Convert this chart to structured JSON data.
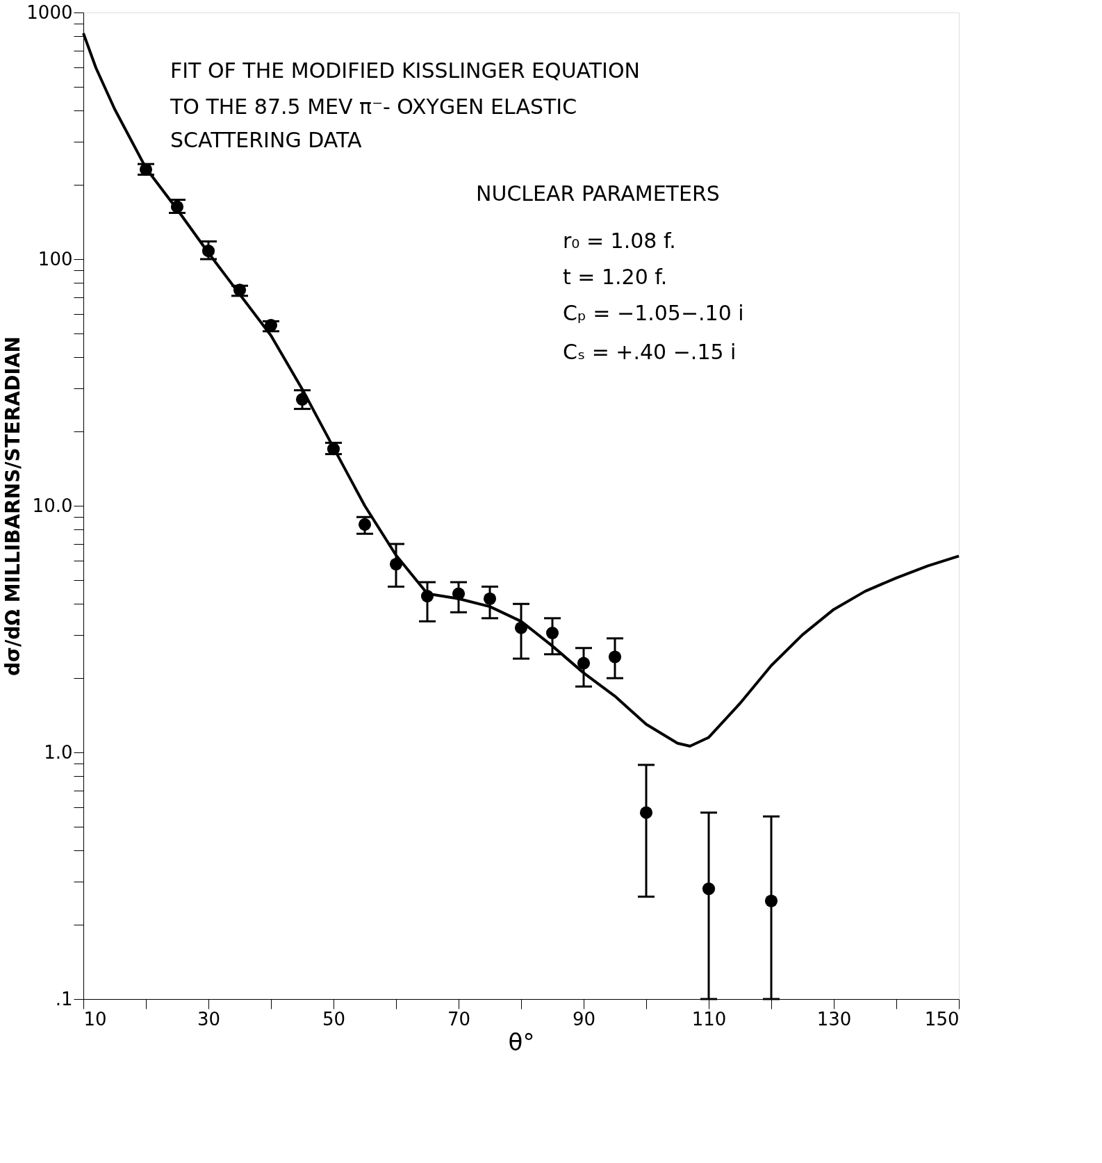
{
  "chart_data": {
    "type": "scatter",
    "xlabel": "θ°",
    "ylabel": "dσ/dΩ  MILLIBARNS/STERADIAN",
    "xlim": [
      10,
      150
    ],
    "ylim": [
      0.1,
      1000
    ],
    "log": "y",
    "grid": false,
    "line_style": "solid",
    "xticks": [
      10,
      {
        "value": 20,
        "label": null
      },
      30,
      {
        "value": 40,
        "label": null
      },
      50,
      {
        "value": 60,
        "label": null
      },
      70,
      {
        "value": 80,
        "label": null
      },
      90,
      {
        "value": 100,
        "label": null
      },
      110,
      {
        "value": 120,
        "label": null
      },
      130,
      {
        "value": 140,
        "label": null
      },
      150
    ],
    "yticks": [
      {
        "value": 0.1,
        "label": ".1"
      },
      {
        "value": 0.2,
        "label": null
      },
      {
        "value": 0.3,
        "label": null
      },
      {
        "value": 0.4,
        "label": null
      },
      {
        "value": 0.5,
        "label": null
      },
      {
        "value": 0.6,
        "label": null
      },
      {
        "value": 0.7,
        "label": null
      },
      {
        "value": 0.8,
        "label": null
      },
      {
        "value": 0.9,
        "label": null
      },
      {
        "value": 1,
        "label": "1.0"
      },
      {
        "value": 2,
        "label": null
      },
      {
        "value": 3,
        "label": null
      },
      {
        "value": 4,
        "label": null
      },
      {
        "value": 5,
        "label": null
      },
      {
        "value": 6,
        "label": null
      },
      {
        "value": 7,
        "label": null
      },
      {
        "value": 8,
        "label": null
      },
      {
        "value": 9,
        "label": null
      },
      {
        "value": 10,
        "label": "10.0"
      },
      {
        "value": 20,
        "label": null
      },
      {
        "value": 30,
        "label": null
      },
      {
        "value": 40,
        "label": null
      },
      {
        "value": 50,
        "label": null
      },
      {
        "value": 60,
        "label": null
      },
      {
        "value": 70,
        "label": null
      },
      {
        "value": 80,
        "label": null
      },
      {
        "value": 90,
        "label": null
      },
      100,
      {
        "value": 200,
        "label": null
      },
      {
        "value": 300,
        "label": null
      },
      {
        "value": 400,
        "label": null
      },
      {
        "value": 500,
        "label": null
      },
      {
        "value": 600,
        "label": null
      },
      {
        "value": 700,
        "label": null
      },
      {
        "value": 800,
        "label": null
      },
      {
        "value": 900,
        "label": null
      },
      1000
    ],
    "annotations": [
      "FIT OF THE MODIFIED KISSLINGER EQUATION",
      "TO THE 87.5 MEV π⁻- OXYGEN ELASTIC",
      "SCATTERING DATA",
      "NUCLEAR PARAMETERS",
      "r₀ = 1.08 f.",
      "t = 1.20 f.",
      "Cₚ = −1.05−.10 i",
      "Cₛ = +.40 −.15 i"
    ],
    "series": [
      {
        "color": "#000000",
        "marker": "circle",
        "x": [
          20,
          25,
          30,
          35,
          40,
          45,
          50,
          55,
          60,
          65,
          70,
          75,
          80,
          85,
          90,
          95,
          100,
          110,
          120
        ],
        "values": [
          231,
          163,
          108,
          75,
          54,
          27,
          17,
          8.4,
          5.8,
          4.3,
          4.4,
          4.2,
          3.2,
          3.05,
          2.3,
          2.44,
          0.57,
          0.28,
          0.25
        ],
        "errors": [
          [
            220,
            243
          ],
          [
            154,
            174
          ],
          [
            100,
            118
          ],
          [
            71,
            78
          ],
          [
            51,
            56
          ],
          [
            24.7,
            29.4
          ],
          [
            16.2,
            18
          ],
          [
            7.7,
            9
          ],
          [
            4.7,
            7
          ],
          [
            3.4,
            4.9
          ],
          [
            3.7,
            4.9
          ],
          [
            3.5,
            4.7
          ],
          [
            2.4,
            4
          ],
          [
            2.5,
            3.5
          ],
          [
            1.85,
            2.65
          ],
          [
            2,
            2.9
          ],
          [
            0.26,
            0.89
          ],
          [
            0.1,
            0.57
          ],
          [
            0.1,
            0.55
          ]
        ]
      },
      {
        "type": "line",
        "color": "#000000",
        "x": [
          10,
          12,
          15,
          20,
          25,
          30,
          35,
          40,
          45,
          50,
          55,
          60,
          65,
          70,
          75,
          80,
          85,
          90,
          95,
          100,
          105,
          107,
          110,
          115,
          120,
          125,
          130,
          135,
          140,
          145,
          150
        ],
        "values": [
          824,
          597,
          406,
          234,
          159,
          106,
          72,
          49,
          29.7,
          17.2,
          10,
          6.3,
          4.4,
          4.2,
          3.9,
          3.4,
          2.7,
          2.1,
          1.69,
          1.3,
          1.09,
          1.06,
          1.15,
          1.58,
          2.25,
          3.0,
          3.8,
          4.5,
          5.1,
          5.7,
          6.25
        ]
      }
    ]
  }
}
